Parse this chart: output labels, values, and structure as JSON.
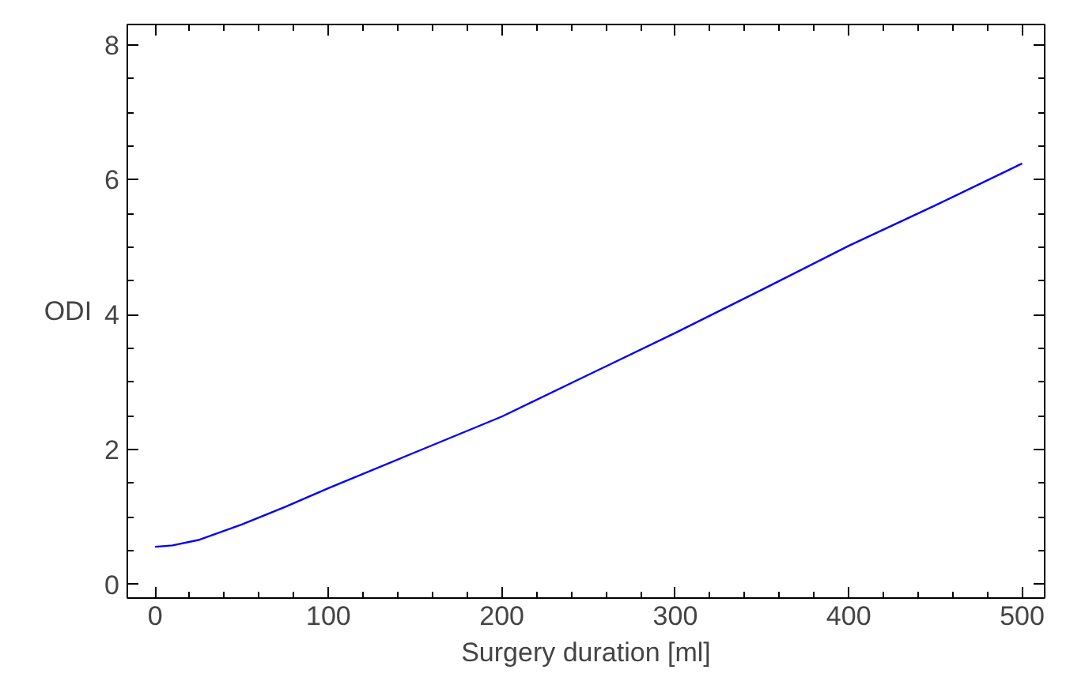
{
  "chart_data": {
    "type": "line",
    "xlabel": "Surgery duration [ml]",
    "ylabel": "ODI",
    "x": [
      0,
      10,
      25,
      50,
      75,
      100,
      150,
      200,
      250,
      300,
      350,
      400,
      450,
      500
    ],
    "series": [
      {
        "color": "#0000ff",
        "values": [
          0.56,
          0.58,
          0.66,
          0.89,
          1.15,
          1.43,
          1.96,
          2.49,
          3.11,
          3.73,
          4.37,
          5.02,
          5.62,
          6.24
        ]
      }
    ],
    "xlim": [
      -16,
      513
    ],
    "ylim": [
      -0.2,
      8.3
    ],
    "xticks": [
      0,
      100,
      200,
      300,
      400,
      500
    ],
    "yticks": [
      0,
      2,
      4,
      6,
      8
    ],
    "grid": false,
    "marker": "none",
    "line_style": "solid"
  }
}
